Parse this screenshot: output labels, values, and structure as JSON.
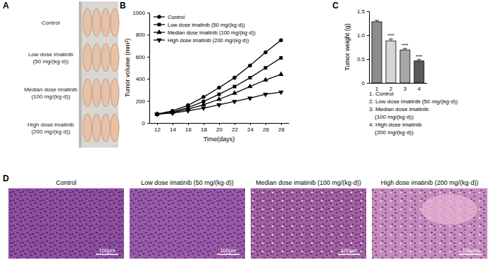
{
  "panel_a": {
    "label": "A",
    "groups": [
      [
        "Control"
      ],
      [
        "Low dose imatinib",
        "(50 mg/(kg·d))"
      ],
      [
        "Median dose imatinib",
        "(100 mg/(kg·d))"
      ],
      [
        "High dose imatinib",
        "(200 mg/(kg·d))"
      ]
    ]
  },
  "chart_data": [
    {
      "label": "B",
      "type": "line",
      "x_label": "Time(days)",
      "y_label": "Tumor volume (mm³)",
      "x": [
        12,
        14,
        16,
        18,
        20,
        22,
        24,
        26,
        28
      ],
      "series": [
        {
          "name": "Control",
          "color": "#000000",
          "marker": "circle",
          "values": [
            80,
            110,
            160,
            235,
            320,
            410,
            520,
            640,
            750
          ]
        },
        {
          "name": "Low dose imatinib (50 mg/(kg·d))",
          "color": "#000000",
          "marker": "square",
          "values": [
            80,
            100,
            140,
            195,
            260,
            330,
            410,
            500,
            590
          ]
        },
        {
          "name": "Median dose imatinib (100 mg/(kg·d))",
          "color": "#000000",
          "marker": "triangle",
          "values": [
            80,
            95,
            125,
            165,
            215,
            270,
            330,
            390,
            440
          ]
        },
        {
          "name": "High dose imatinib (200 mg/(kg·d))",
          "color": "#000000",
          "marker": "triangle-down",
          "values": [
            80,
            90,
            110,
            135,
            165,
            195,
            225,
            260,
            280
          ]
        }
      ],
      "xlim": [
        11,
        29
      ],
      "xticks": [
        12,
        14,
        16,
        18,
        20,
        22,
        24,
        26,
        28
      ],
      "ylim": [
        0,
        1000
      ],
      "yticks": [
        0,
        200,
        400,
        600,
        800,
        1000
      ],
      "legend": "upper left"
    },
    {
      "label": "C",
      "type": "bar",
      "y_label": "Tumor weight (g)",
      "categories": [
        "1",
        "2",
        "3",
        "4"
      ],
      "values": [
        1.28,
        0.88,
        0.69,
        0.46
      ],
      "errors": [
        0.03,
        0.04,
        0.03,
        0.03
      ],
      "colors": [
        "#8c8c8c",
        "#d6d6d6",
        "#a8a8a8",
        "#5a5a5a"
      ],
      "ylim": [
        0,
        1.5
      ],
      "yticks": [
        0,
        0.5,
        {
          "value": 1,
          "label": "1.0"
        },
        1.5
      ],
      "annotations": [
        {
          "x": "2",
          "text": "***"
        },
        {
          "x": "3",
          "text": "***"
        },
        {
          "x": "4",
          "text": "***"
        }
      ],
      "key": [
        "1. Control",
        "2. Low dose imatinib (50 mg/(kg·d))",
        "3. Median dose imatinib",
        "(100 mg/(kg·d))",
        "4. High dose imatinib",
        "(200 mg/(kg·d))"
      ]
    }
  ],
  "panel_d": {
    "label": "D",
    "titles": [
      "Control",
      "Low dose imatinib (50 mg/(kg·d))",
      "Median dose imatinib (100 mg/(kg·d))",
      "High dose imatinib (200 mg/(kg·d))"
    ],
    "scale_bar": "100μm"
  }
}
